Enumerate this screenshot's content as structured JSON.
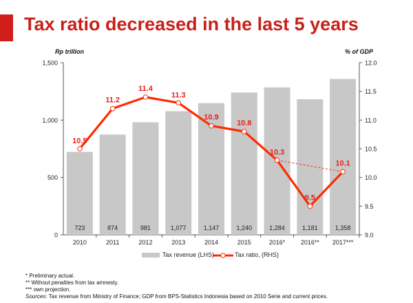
{
  "title": "Tax ratio decreased in the last 5 years",
  "left_axis_unit": "Rp trillion",
  "right_axis_unit": "% of GDP",
  "colors": {
    "title": "#c8201b",
    "accent_bar": "#d21e1a",
    "bar": "#c8c8c8",
    "line": "#ff2a00",
    "marker_fill": "#ffffff",
    "label": "#e8221a"
  },
  "chart_data": {
    "type": "bar",
    "categories": [
      "2010",
      "2011",
      "2012",
      "2013",
      "2014",
      "2015",
      "2016*",
      "2016**",
      "2017***"
    ],
    "series": [
      {
        "name": "Tax revenue (LHS)",
        "type": "bar",
        "axis": "left",
        "values": [
          723,
          874,
          981,
          1077,
          1147,
          1240,
          1284,
          1181,
          1358
        ],
        "labels": [
          "723",
          "874",
          "981",
          "1,077",
          "1,147",
          "1,240",
          "1,284",
          "1,181",
          "1,358"
        ]
      },
      {
        "name": "Tax ratio, (RHS)",
        "type": "line",
        "axis": "right",
        "values": [
          10.5,
          11.2,
          11.4,
          11.3,
          10.9,
          10.8,
          10.3,
          9.5,
          10.1
        ],
        "labels": [
          "10.5",
          "11.2",
          "11.4",
          "11.3",
          "10.9",
          "10.8",
          "10.3",
          "9.5",
          "10.1"
        ],
        "solid_path": [
          0,
          1,
          2,
          3,
          4,
          5,
          6,
          7,
          8
        ],
        "dashed_connector": [
          6,
          8
        ]
      }
    ],
    "y_left": {
      "min": 0,
      "max": 1500,
      "ticks": [
        0,
        500,
        1000,
        1500
      ],
      "tick_labels": [
        "0",
        "500",
        "1,000",
        "1,500"
      ]
    },
    "y_right": {
      "min": 9.0,
      "max": 12.0,
      "ticks": [
        9.0,
        9.5,
        10.0,
        10.5,
        11.0,
        11.5,
        12.0
      ],
      "tick_labels": [
        "9.0",
        "9.5",
        "10.0",
        "10.5",
        "11.0",
        "11.5",
        "12.0"
      ]
    },
    "legend_position": "bottom-center",
    "grid": false
  },
  "footnotes": {
    "line1": "* Preliminary actual.",
    "line2": "** Without penalties from tax amnesty.",
    "line3": "*** own projection.",
    "sources_label": "Sources",
    "sources_text": ": Tax revenue from Ministry of Finance; GDP from BPS-Statistics Indonesia based on 2010 Serie and current prices."
  }
}
